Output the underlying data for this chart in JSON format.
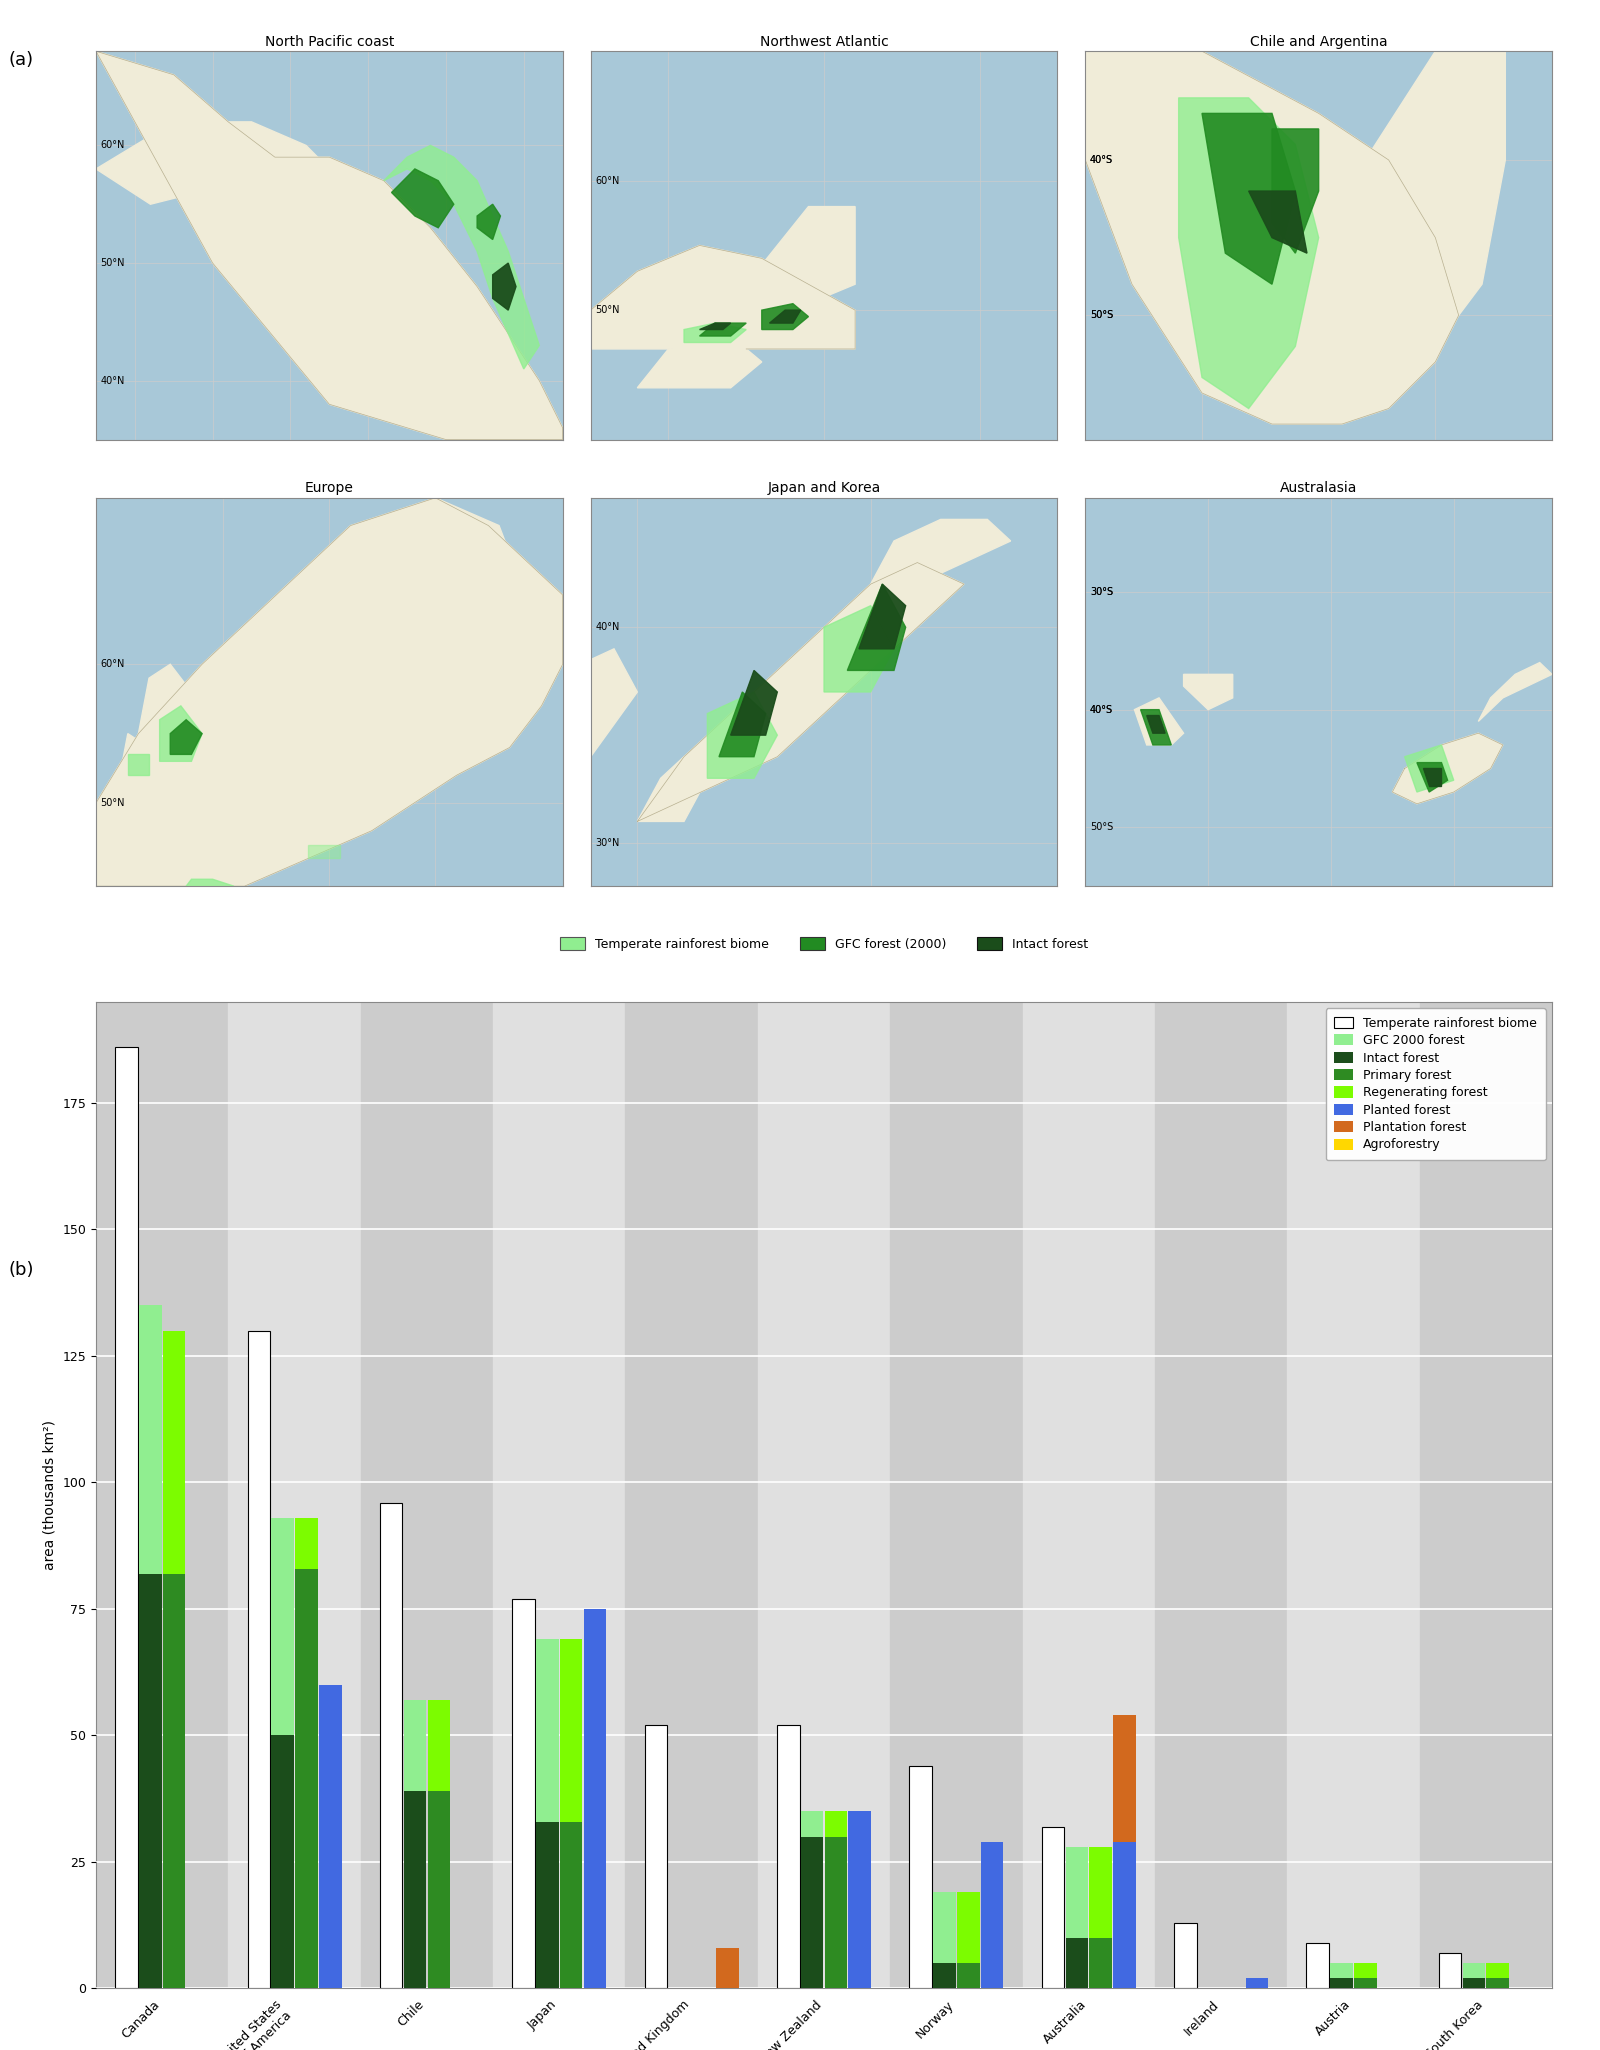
{
  "panel_label_a": "(a)",
  "panel_label_b": "(b)",
  "map_titles": [
    "North Pacific coast",
    "Northwest Atlantic",
    "Chile and Argentina",
    "Europe",
    "Japan and Korea",
    "Australasia"
  ],
  "legend_map_labels": [
    "Temperate rainforest biome",
    "GFC forest (2000)",
    "Intact forest"
  ],
  "legend_map_colors": [
    "#90EE90",
    "#228B22",
    "#1B4D1B"
  ],
  "bar_categories": [
    "Canada",
    "United States\nof America",
    "Chile",
    "Japan",
    "United Kingdom",
    "New Zealand",
    "Norway",
    "Australia",
    "Ireland",
    "Austria",
    "South Korea"
  ],
  "bar_ylabel": "area (thousands km²)",
  "bar_ylim": [
    0,
    195
  ],
  "bar_yticks": [
    0,
    25,
    50,
    75,
    100,
    125,
    150,
    175
  ],
  "legend_bar_labels": [
    "Temperate rainforest biome",
    "GFC 2000 forest",
    "Intact forest",
    "Primary forest",
    "Regenerating forest",
    "Planted forest",
    "Plantation forest",
    "Agroforestry"
  ],
  "legend_bar_colors": [
    "#FFFFFF",
    "#90EE90",
    "#1B4D1B",
    "#2E8B22",
    "#7CFC00",
    "#4169E1",
    "#D2691E",
    "#FFD700"
  ],
  "biome_h": [
    186,
    130,
    96,
    77,
    52,
    52,
    44,
    32,
    13,
    9,
    7
  ],
  "gfc_h": [
    135,
    93,
    57,
    69,
    0,
    35,
    19,
    28,
    0,
    5,
    5
  ],
  "intact_h": [
    82,
    50,
    39,
    33,
    0,
    30,
    5,
    10,
    0,
    2,
    2
  ],
  "primary_h": [
    82,
    83,
    39,
    33,
    0,
    30,
    5,
    10,
    0,
    2,
    2
  ],
  "regen_h": [
    48,
    10,
    18,
    36,
    0,
    5,
    14,
    18,
    0,
    3,
    3
  ],
  "planted_h": [
    0,
    60,
    0,
    75,
    0,
    35,
    29,
    29,
    2,
    0,
    0
  ],
  "plantation_h": [
    0,
    0,
    0,
    0,
    8,
    0,
    0,
    25,
    0,
    0,
    0
  ],
  "agro_h": [
    0,
    0,
    0,
    0,
    0,
    0,
    0,
    0,
    0,
    0,
    0
  ],
  "shaded_idx": [
    0,
    2,
    4,
    6,
    8,
    10
  ],
  "ocean_color": "#A8C8D8",
  "land_color": "#F0ECD8",
  "grid_color": "#CCCCCC"
}
